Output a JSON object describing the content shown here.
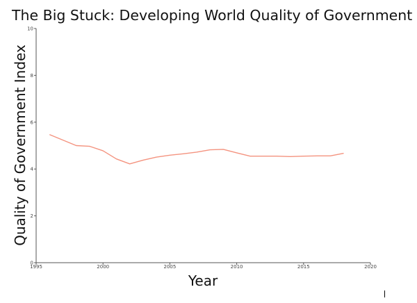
{
  "chart_data": {
    "type": "line",
    "title": "The Big Stuck: Developing World Quality of Government",
    "xlabel": "Year",
    "ylabel": "Quality of Government Index",
    "xlim": [
      1995,
      2020
    ],
    "ylim": [
      0,
      10
    ],
    "x_ticks": [
      1995,
      2000,
      2005,
      2010,
      2015,
      2020
    ],
    "y_ticks": [
      0,
      2,
      4,
      6,
      8,
      10
    ],
    "grid": false,
    "legend": "none",
    "series": [
      {
        "color": "#f4937f",
        "x": [
          1996,
          1998,
          1999,
          2000,
          2001,
          2002,
          2003,
          2004,
          2005,
          2006,
          2007,
          2008,
          2009,
          2010,
          2011,
          2012,
          2013,
          2014,
          2015,
          2016,
          2017,
          2018
        ],
        "y": [
          5.47,
          5.0,
          4.97,
          4.78,
          4.43,
          4.22,
          4.38,
          4.51,
          4.59,
          4.65,
          4.72,
          4.82,
          4.84,
          4.69,
          4.55,
          4.55,
          4.55,
          4.53,
          4.55,
          4.56,
          4.56,
          4.67
        ]
      }
    ]
  }
}
